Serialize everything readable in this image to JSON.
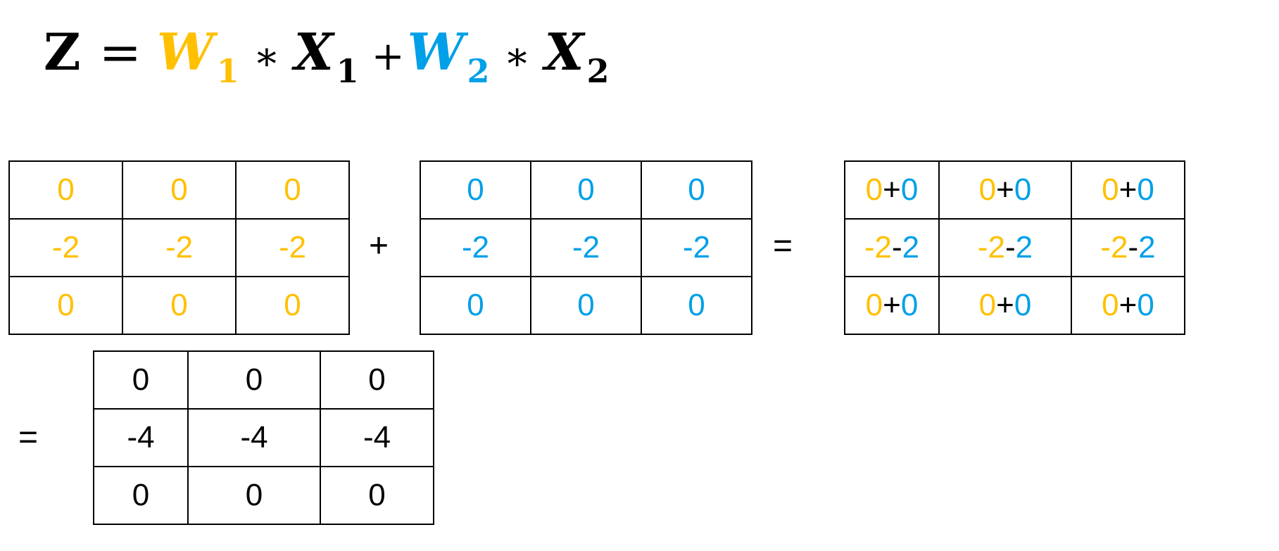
{
  "formula": {
    "z": "Z",
    "equals": "=",
    "w1": "W",
    "w1_sub": "1",
    "times": "∗",
    "x1": "X",
    "x1_sub": "1",
    "plus": "+",
    "w2": "W",
    "w2_sub": "2",
    "x2": "X",
    "x2_sub": "2"
  },
  "colors": {
    "w1": "#FFC000",
    "w2": "#00A0E8",
    "black": "#000000"
  },
  "symbols": {
    "plus": "+",
    "equals1": "=",
    "equals2": "="
  },
  "matrix_w1x1": [
    [
      "0",
      "0",
      "0"
    ],
    [
      "-2",
      "-2",
      "-2"
    ],
    [
      "0",
      "0",
      "0"
    ]
  ],
  "matrix_w2x2": [
    [
      "0",
      "0",
      "0"
    ],
    [
      "-2",
      "-2",
      "-2"
    ],
    [
      "0",
      "0",
      "0"
    ]
  ],
  "matrix_sum_expr": [
    [
      [
        "0",
        "+",
        "0"
      ],
      [
        "0",
        "+",
        "0"
      ],
      [
        "0",
        "+",
        "0"
      ]
    ],
    [
      [
        "-2",
        "-",
        "2"
      ],
      [
        "-2",
        "-",
        "2"
      ],
      [
        "-2",
        "-",
        "2"
      ]
    ],
    [
      [
        "0",
        "+",
        "0"
      ],
      [
        "0",
        "+",
        "0"
      ],
      [
        "0",
        "+",
        "0"
      ]
    ]
  ],
  "matrix_result": [
    [
      "0",
      "0",
      "0"
    ],
    [
      "-4",
      "-4",
      "-4"
    ],
    [
      "0",
      "0",
      "0"
    ]
  ]
}
